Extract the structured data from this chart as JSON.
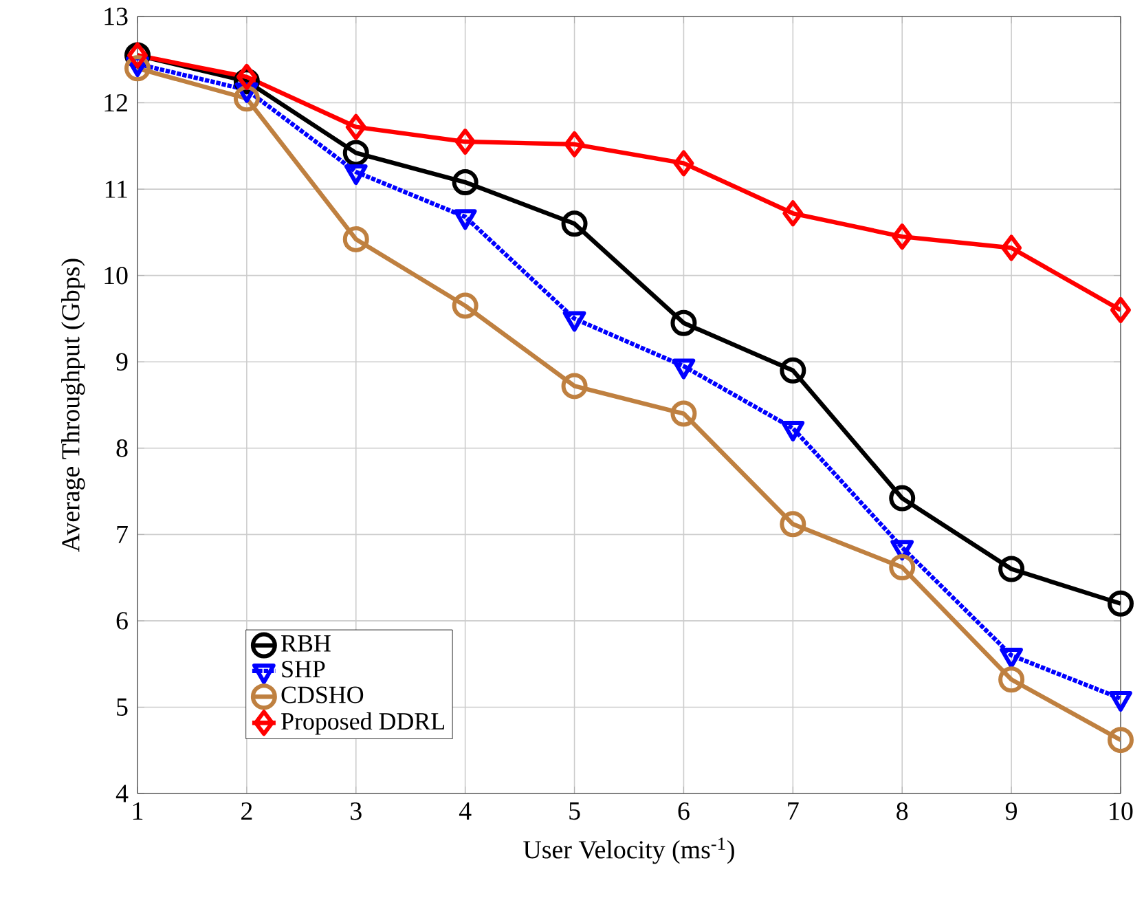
{
  "chart_data": {
    "type": "line",
    "xlabel": "User Velocity (ms$^{-1}$)",
    "ylabel": "Average Throughput (Gbps)",
    "x": [
      1,
      2,
      3,
      4,
      5,
      6,
      7,
      8,
      9,
      10
    ],
    "xlim": [
      1,
      10
    ],
    "xticks": [
      1,
      2,
      3,
      4,
      5,
      6,
      7,
      8,
      9,
      10
    ],
    "ylim": [
      4,
      13
    ],
    "yticks": [
      4,
      5,
      6,
      7,
      8,
      9,
      10,
      11,
      12,
      13
    ],
    "grid": true,
    "legend": "bottom left",
    "series": [
      {
        "name": "RBH",
        "color": "#000000",
        "marker": "circle",
        "line_style": "solid",
        "values": [
          12.55,
          12.25,
          11.42,
          11.08,
          10.6,
          9.45,
          8.9,
          7.42,
          6.6,
          6.2
        ]
      },
      {
        "name": "SHP",
        "color": "#0000ff",
        "marker": "triangle",
        "line_style": "dotted",
        "values": [
          12.45,
          12.15,
          11.2,
          10.68,
          9.5,
          8.95,
          8.23,
          6.85,
          5.6,
          5.1
        ]
      },
      {
        "name": "CDSHO",
        "color": "#bf8040",
        "marker": "circle",
        "line_style": "solid",
        "values": [
          12.4,
          12.05,
          10.42,
          9.65,
          8.72,
          8.4,
          7.12,
          6.62,
          5.32,
          4.62
        ]
      },
      {
        "name": "Proposed DDRL",
        "color": "#ff0000",
        "marker": "diamond",
        "line_style": "solid",
        "values": [
          12.55,
          12.3,
          11.72,
          11.55,
          11.52,
          11.3,
          10.72,
          10.45,
          10.32,
          9.6
        ]
      }
    ]
  }
}
